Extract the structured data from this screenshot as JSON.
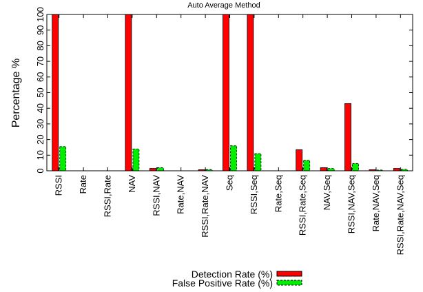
{
  "chart_data": {
    "type": "bar",
    "title": "Auto Average Method",
    "xlabel": "",
    "ylabel": "Percentage %",
    "ylim": [
      0,
      100
    ],
    "yticks": [
      0,
      10,
      20,
      30,
      40,
      50,
      60,
      70,
      80,
      90,
      100
    ],
    "grid": false,
    "legend_position": "bottom-right",
    "categories": [
      "RSSI",
      "Rate",
      "RSSI,Rate",
      "NAV",
      "RSSI,NAV",
      "Rate,NAV",
      "RSSI,Rate,NAV",
      "Seq",
      "RSSI,Seq",
      "Rate,Seq",
      "RSSI,Rate,Seq",
      "NAV,Seq",
      "RSSI,NAV,Seq",
      "Rate,NAV,Seq",
      "RSSI,Rate,NAV,Seq"
    ],
    "series": [
      {
        "name": "Detection Rate (%)",
        "color": "#ff0000",
        "values": [
          100,
          0,
          0,
          100,
          1.5,
          0,
          0.7,
          100,
          100,
          0,
          13.5,
          2,
          43,
          0.7,
          1.5
        ]
      },
      {
        "name": "False Positive Rate (%)",
        "color": "#00ee00",
        "values": [
          15.5,
          0,
          0,
          14,
          2,
          0,
          0.8,
          16,
          11,
          0,
          6.7,
          1.5,
          4.7,
          0.5,
          1
        ]
      }
    ]
  }
}
